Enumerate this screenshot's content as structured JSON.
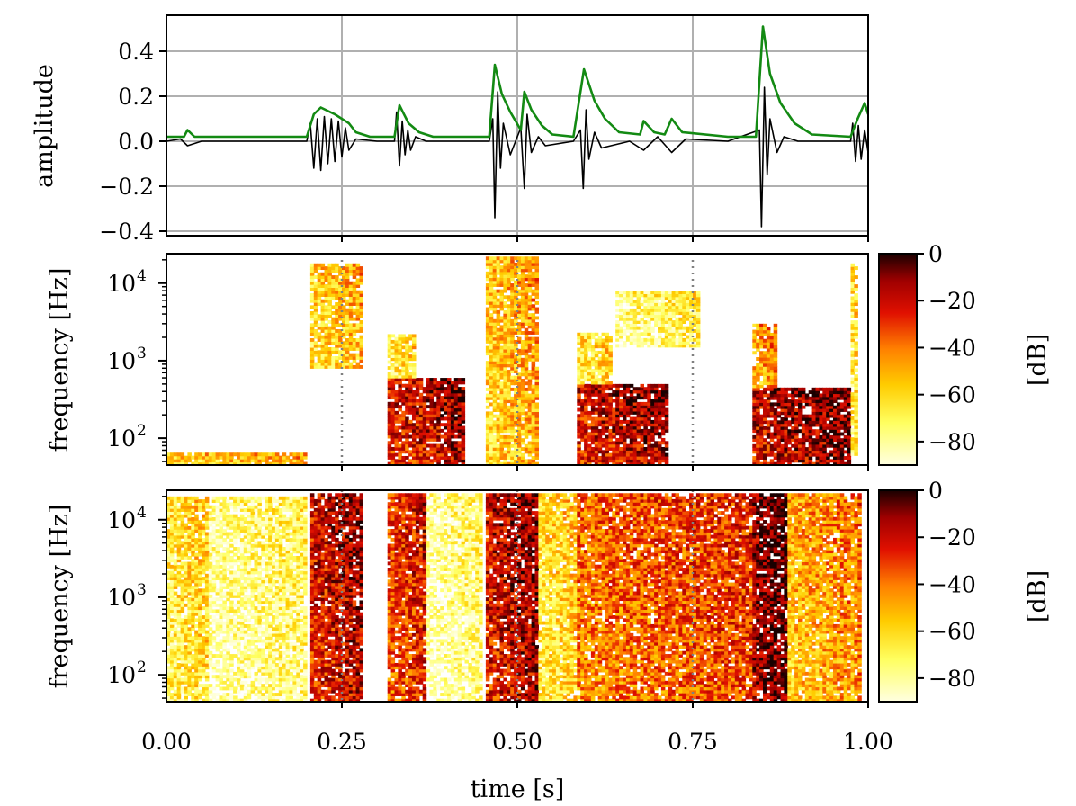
{
  "chart_data": [
    {
      "id": "waveform",
      "type": "line",
      "xlim": [
        0,
        1
      ],
      "ylim": [
        -0.42,
        0.56
      ],
      "ylabel": "amplitude",
      "yticks": [
        -0.4,
        -0.2,
        0.0,
        0.2,
        0.4
      ],
      "ytick_labels": [
        "−0.4",
        "−0.2",
        "0.0",
        "0.2",
        "0.4"
      ],
      "xgrid": [
        0.25,
        0.5,
        0.75
      ],
      "grid": true,
      "series": [
        {
          "color": "#000000",
          "kind": "signal",
          "points": [
            [
              0.0,
              0.0
            ],
            [
              0.02,
              0.01
            ],
            [
              0.03,
              -0.02
            ],
            [
              0.05,
              0.0
            ],
            [
              0.2,
              0.0
            ],
            [
              0.205,
              0.08
            ],
            [
              0.21,
              -0.12
            ],
            [
              0.215,
              0.1
            ],
            [
              0.22,
              -0.13
            ],
            [
              0.225,
              0.11
            ],
            [
              0.23,
              -0.1
            ],
            [
              0.235,
              0.1
            ],
            [
              0.24,
              -0.09
            ],
            [
              0.245,
              0.09
            ],
            [
              0.25,
              -0.07
            ],
            [
              0.255,
              0.06
            ],
            [
              0.26,
              -0.04
            ],
            [
              0.27,
              0.01
            ],
            [
              0.3,
              0.0
            ],
            [
              0.325,
              0.0
            ],
            [
              0.328,
              0.13
            ],
            [
              0.332,
              -0.11
            ],
            [
              0.336,
              0.09
            ],
            [
              0.34,
              -0.06
            ],
            [
              0.344,
              0.05
            ],
            [
              0.348,
              -0.04
            ],
            [
              0.355,
              0.02
            ],
            [
              0.37,
              0.0
            ],
            [
              0.46,
              0.0
            ],
            [
              0.465,
              0.1
            ],
            [
              0.468,
              -0.34
            ],
            [
              0.472,
              0.22
            ],
            [
              0.476,
              -0.12
            ],
            [
              0.48,
              0.08
            ],
            [
              0.49,
              -0.06
            ],
            [
              0.505,
              0.06
            ],
            [
              0.51,
              -0.21
            ],
            [
              0.514,
              0.12
            ],
            [
              0.52,
              -0.05
            ],
            [
              0.53,
              0.02
            ],
            [
              0.54,
              -0.02
            ],
            [
              0.58,
              0.0
            ],
            [
              0.59,
              0.05
            ],
            [
              0.594,
              -0.21
            ],
            [
              0.598,
              0.14
            ],
            [
              0.602,
              -0.08
            ],
            [
              0.61,
              0.04
            ],
            [
              0.62,
              -0.03
            ],
            [
              0.66,
              0.0
            ],
            [
              0.68,
              -0.04
            ],
            [
              0.7,
              0.02
            ],
            [
              0.72,
              -0.05
            ],
            [
              0.74,
              0.01
            ],
            [
              0.8,
              0.0
            ],
            [
              0.845,
              0.05
            ],
            [
              0.848,
              -0.38
            ],
            [
              0.852,
              0.24
            ],
            [
              0.856,
              -0.15
            ],
            [
              0.86,
              0.1
            ],
            [
              0.87,
              -0.05
            ],
            [
              0.88,
              0.02
            ],
            [
              0.9,
              0.0
            ],
            [
              0.975,
              0.0
            ],
            [
              0.978,
              0.08
            ],
            [
              0.982,
              -0.09
            ],
            [
              0.986,
              0.07
            ],
            [
              0.99,
              -0.08
            ],
            [
              0.995,
              0.05
            ],
            [
              1.0,
              -0.05
            ]
          ]
        },
        {
          "color": "#138a13",
          "kind": "envelope",
          "points": [
            [
              0.0,
              0.02
            ],
            [
              0.025,
              0.02
            ],
            [
              0.03,
              0.05
            ],
            [
              0.04,
              0.02
            ],
            [
              0.2,
              0.02
            ],
            [
              0.21,
              0.12
            ],
            [
              0.22,
              0.15
            ],
            [
              0.24,
              0.12
            ],
            [
              0.26,
              0.08
            ],
            [
              0.27,
              0.04
            ],
            [
              0.29,
              0.02
            ],
            [
              0.325,
              0.02
            ],
            [
              0.332,
              0.16
            ],
            [
              0.345,
              0.08
            ],
            [
              0.36,
              0.04
            ],
            [
              0.38,
              0.02
            ],
            [
              0.46,
              0.02
            ],
            [
              0.468,
              0.34
            ],
            [
              0.478,
              0.21
            ],
            [
              0.49,
              0.13
            ],
            [
              0.505,
              0.05
            ],
            [
              0.51,
              0.22
            ],
            [
              0.52,
              0.14
            ],
            [
              0.535,
              0.07
            ],
            [
              0.55,
              0.03
            ],
            [
              0.58,
              0.02
            ],
            [
              0.595,
              0.32
            ],
            [
              0.61,
              0.18
            ],
            [
              0.625,
              0.1
            ],
            [
              0.645,
              0.04
            ],
            [
              0.675,
              0.03
            ],
            [
              0.68,
              0.09
            ],
            [
              0.695,
              0.04
            ],
            [
              0.71,
              0.03
            ],
            [
              0.72,
              0.1
            ],
            [
              0.735,
              0.04
            ],
            [
              0.8,
              0.02
            ],
            [
              0.84,
              0.02
            ],
            [
              0.85,
              0.51
            ],
            [
              0.86,
              0.3
            ],
            [
              0.875,
              0.17
            ],
            [
              0.895,
              0.08
            ],
            [
              0.92,
              0.03
            ],
            [
              0.975,
              0.02
            ],
            [
              0.985,
              0.1
            ],
            [
              0.995,
              0.17
            ],
            [
              1.0,
              0.12
            ]
          ]
        }
      ]
    },
    {
      "id": "spectrogram-1",
      "type": "heatmap",
      "xlim": [
        0,
        1
      ],
      "ylabel": "frequency [Hz]",
      "yscale": "log",
      "ylim_hz": [
        45,
        24000
      ],
      "yticks_hz": [
        100,
        1000,
        10000
      ],
      "ytick_labels": [
        "10",
        "10",
        "10"
      ],
      "ytick_exponents": [
        "2",
        "3",
        "4"
      ],
      "vlines": [
        0.25,
        0.5,
        0.75
      ],
      "colormap": "hot_r",
      "colorbar": {
        "label": "[dB]",
        "range_db": [
          -90,
          0
        ],
        "ticks": [
          0,
          -20,
          -40,
          -60,
          -80
        ],
        "tick_labels": [
          "0",
          "−20",
          "−40",
          "−60",
          "−80"
        ]
      },
      "events": [
        {
          "t": 0.0,
          "dur": 0.2,
          "f_lo": 45,
          "f_hi": 65,
          "db": -62
        },
        {
          "t": 0.205,
          "dur": 0.07,
          "f_lo": 800,
          "f_hi": 18000,
          "db": -65
        },
        {
          "t": 0.315,
          "dur": 0.11,
          "f_lo": 45,
          "f_hi": 600,
          "db": -30
        },
        {
          "t": 0.315,
          "dur": 0.04,
          "f_lo": 600,
          "f_hi": 2200,
          "db": -72
        },
        {
          "t": 0.455,
          "dur": 0.075,
          "f_lo": 45,
          "f_hi": 22000,
          "db": -62
        },
        {
          "t": 0.585,
          "dur": 0.13,
          "f_lo": 45,
          "f_hi": 500,
          "db": -28
        },
        {
          "t": 0.585,
          "dur": 0.05,
          "f_lo": 500,
          "f_hi": 2300,
          "db": -70
        },
        {
          "t": 0.64,
          "dur": 0.12,
          "f_lo": 1500,
          "f_hi": 8000,
          "db": -82
        },
        {
          "t": 0.835,
          "dur": 0.14,
          "f_lo": 45,
          "f_hi": 450,
          "db": -25
        },
        {
          "t": 0.835,
          "dur": 0.035,
          "f_lo": 450,
          "f_hi": 3000,
          "db": -55
        },
        {
          "t": 0.975,
          "dur": 0.01,
          "f_lo": 60,
          "f_hi": 18000,
          "db": -70
        }
      ]
    },
    {
      "id": "spectrogram-2",
      "type": "heatmap",
      "xlim": [
        0,
        1
      ],
      "xlabel": "time [s]",
      "xticks": [
        0.0,
        0.25,
        0.5,
        0.75,
        1.0
      ],
      "xtick_labels": [
        "0.00",
        "0.25",
        "0.50",
        "0.75",
        "1.00"
      ],
      "ylabel": "frequency [Hz]",
      "yscale": "log",
      "ylim_hz": [
        45,
        24000
      ],
      "yticks_hz": [
        100,
        1000,
        10000
      ],
      "ytick_labels": [
        "10",
        "10",
        "10"
      ],
      "ytick_exponents": [
        "2",
        "3",
        "4"
      ],
      "vlines": [
        0.25,
        0.5,
        0.75
      ],
      "colormap": "hot_r",
      "colorbar": {
        "label": "[dB]",
        "range_db": [
          -90,
          0
        ],
        "ticks": [
          0,
          -20,
          -40,
          -60,
          -80
        ],
        "tick_labels": [
          "0",
          "−20",
          "−40",
          "−60",
          "−80"
        ]
      },
      "events": [
        {
          "t": 0.0,
          "dur": 0.06,
          "f_lo": 45,
          "f_hi": 20000,
          "db": -72
        },
        {
          "t": 0.06,
          "dur": 0.14,
          "f_lo": 45,
          "f_hi": 20000,
          "db": -86
        },
        {
          "t": 0.205,
          "dur": 0.07,
          "f_lo": 45,
          "f_hi": 22000,
          "db": -30
        },
        {
          "t": 0.315,
          "dur": 0.055,
          "f_lo": 45,
          "f_hi": 22000,
          "db": -38
        },
        {
          "t": 0.37,
          "dur": 0.08,
          "f_lo": 45,
          "f_hi": 22000,
          "db": -88
        },
        {
          "t": 0.455,
          "dur": 0.075,
          "f_lo": 45,
          "f_hi": 22000,
          "db": -28
        },
        {
          "t": 0.53,
          "dur": 0.05,
          "f_lo": 45,
          "f_hi": 22000,
          "db": -70
        },
        {
          "t": 0.585,
          "dur": 0.25,
          "f_lo": 45,
          "f_hi": 22000,
          "db": -45
        },
        {
          "t": 0.835,
          "dur": 0.05,
          "f_lo": 45,
          "f_hi": 22000,
          "db": -18
        },
        {
          "t": 0.885,
          "dur": 0.09,
          "f_lo": 45,
          "f_hi": 22000,
          "db": -58
        },
        {
          "t": 0.975,
          "dur": 0.012,
          "f_lo": 45,
          "f_hi": 22000,
          "db": -50
        }
      ]
    }
  ]
}
